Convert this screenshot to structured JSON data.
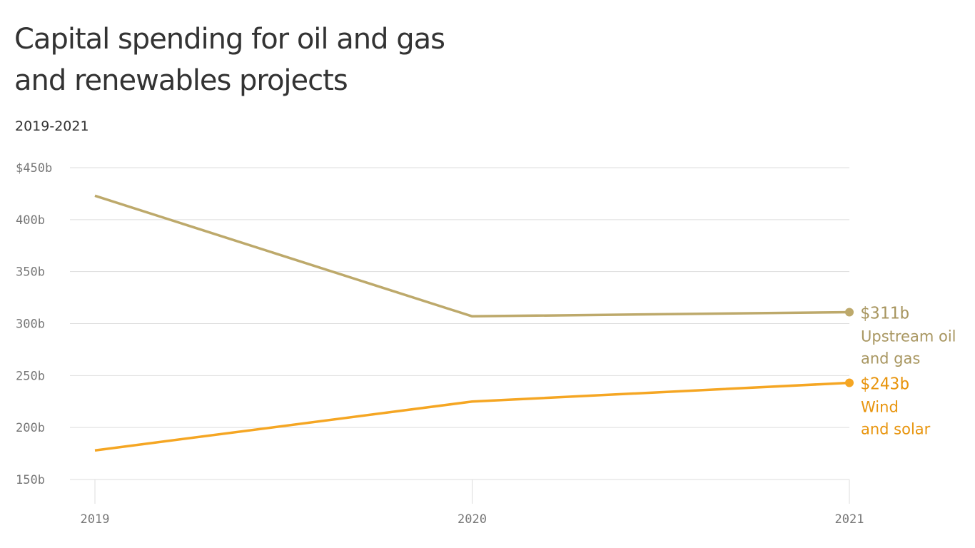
{
  "chart_data": {
    "type": "line",
    "title_lines": [
      "Capital spending for oil and gas",
      "and renewables projects"
    ],
    "subtitle": "2019-2021",
    "x": [
      "2019",
      "2020",
      "2021"
    ],
    "ylim": [
      150,
      450
    ],
    "yticks": [
      150,
      200,
      250,
      300,
      350,
      400,
      450
    ],
    "ytick_labels": [
      "150b",
      "200b",
      "250b",
      "300b",
      "350b",
      "400b",
      "$450b"
    ],
    "grid": true,
    "series": [
      {
        "name": "Upstream oil and gas",
        "label_lines": [
          "Upstream oil",
          "and gas"
        ],
        "values": [
          423,
          307,
          311
        ],
        "end_label": "$311b",
        "color": "#bda96b"
      },
      {
        "name": "Wind and solar",
        "label_lines": [
          "Wind",
          "and solar"
        ],
        "values": [
          178,
          225,
          243
        ],
        "end_label": "$243b",
        "color": "#f5a623"
      }
    ]
  }
}
